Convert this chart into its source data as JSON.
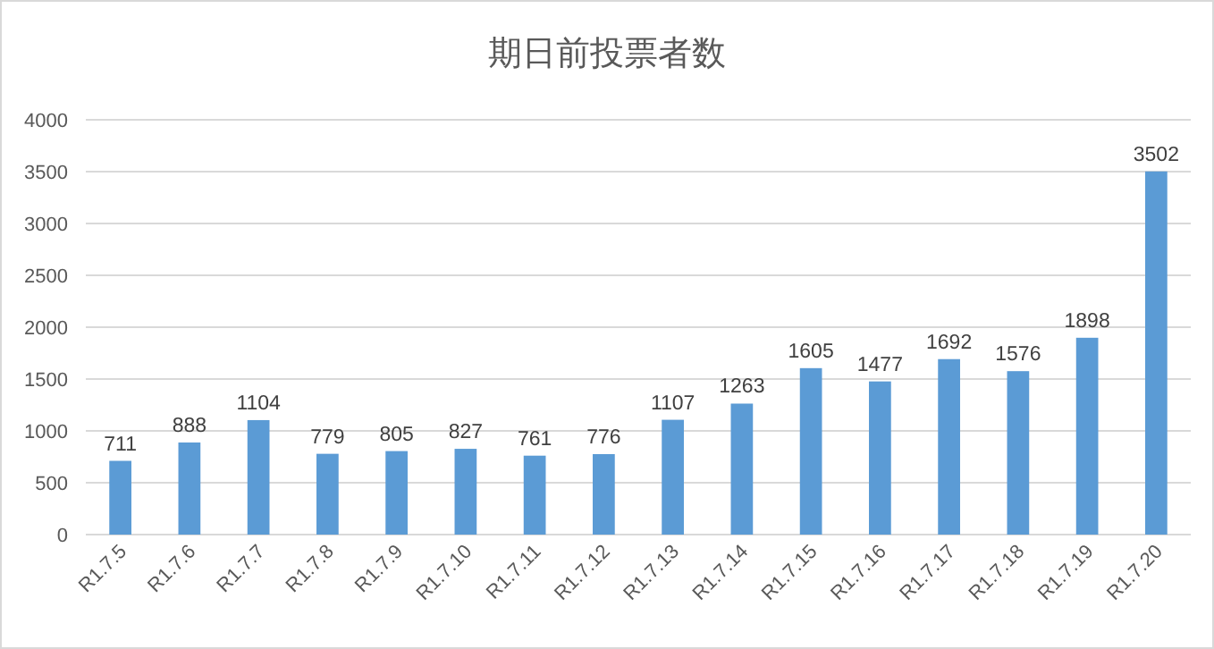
{
  "chart_data": {
    "type": "bar",
    "title": "期日前投票者数",
    "categories": [
      "R1.7.5",
      "R1.7.6",
      "R1.7.7",
      "R1.7.8",
      "R1.7.9",
      "R1.7.10",
      "R1.7.11",
      "R1.7.12",
      "R1.7.13",
      "R1.7.14",
      "R1.7.15",
      "R1.7.16",
      "R1.7.17",
      "R1.7.18",
      "R1.7.19",
      "R1.7.20"
    ],
    "values": [
      711,
      888,
      1104,
      779,
      805,
      827,
      761,
      776,
      1107,
      1263,
      1605,
      1477,
      1692,
      1576,
      1898,
      3502
    ],
    "color": "#5b9bd5",
    "ylim": [
      0,
      4000
    ],
    "yticks": [
      0,
      500,
      1000,
      1500,
      2000,
      2500,
      3000,
      3500,
      4000
    ],
    "grid": "y",
    "data_labels": true
  }
}
